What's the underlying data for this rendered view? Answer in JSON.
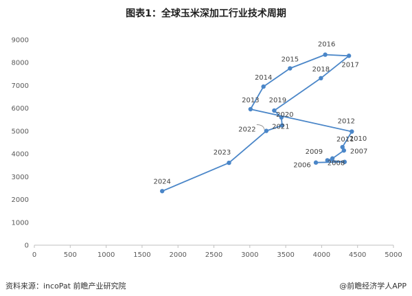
{
  "title": "图表1：全球玉米深加工行业技术周期",
  "footer": {
    "source": "资料来源：incoPat 前瞻产业研究院",
    "brand": "@前瞻经济学人APP"
  },
  "colors": {
    "series": "#4a86c8",
    "axis": "#bfbfbf",
    "grid": "#d9d9d9"
  },
  "chart_data": {
    "type": "scatter",
    "mode": "lines+markers",
    "title": "图表1：全球玉米深加工行业技术周期",
    "xlabel": "",
    "ylabel": "",
    "xlim": [
      0,
      5000
    ],
    "ylim": [
      0,
      9000
    ],
    "x_ticks": [
      0,
      500,
      1000,
      1500,
      2000,
      2500,
      3000,
      3500,
      4000,
      4500,
      5000
    ],
    "y_ticks": [
      0,
      1000,
      2000,
      3000,
      4000,
      5000,
      6000,
      7000,
      8000,
      9000
    ],
    "grid": false,
    "points": [
      {
        "label": "2006",
        "x": 3920,
        "y": 3620
      },
      {
        "label": "2007",
        "x": 4320,
        "y": 3650
      },
      {
        "label": "2008",
        "x": 4080,
        "y": 3720
      },
      {
        "label": "2009",
        "x": 4150,
        "y": 3800
      },
      {
        "label": "2010",
        "x": 4310,
        "y": 4150
      },
      {
        "label": "2011",
        "x": 4290,
        "y": 4300
      },
      {
        "label": "2012",
        "x": 4420,
        "y": 4980
      },
      {
        "label": "2013",
        "x": 3010,
        "y": 5960
      },
      {
        "label": "2014",
        "x": 3190,
        "y": 6950
      },
      {
        "label": "2015",
        "x": 3560,
        "y": 7750
      },
      {
        "label": "2016",
        "x": 4050,
        "y": 8350
      },
      {
        "label": "2017",
        "x": 4380,
        "y": 8300
      },
      {
        "label": "2018",
        "x": 3990,
        "y": 7320
      },
      {
        "label": "2019",
        "x": 3340,
        "y": 5900
      },
      {
        "label": "2020",
        "x": 3440,
        "y": 5600
      },
      {
        "label": "2021",
        "x": 3450,
        "y": 5250
      },
      {
        "label": "2022",
        "x": 3230,
        "y": 5010
      },
      {
        "label": "2023",
        "x": 2710,
        "y": 3610
      },
      {
        "label": "2024",
        "x": 1780,
        "y": 2370
      }
    ]
  }
}
